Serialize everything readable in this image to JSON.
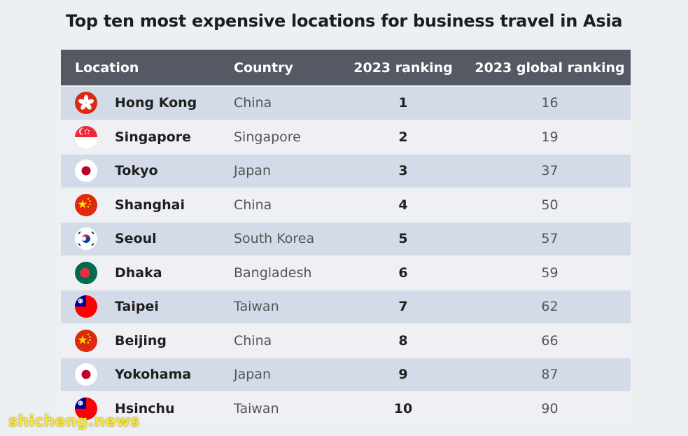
{
  "title": "Top ten most expensive locations for business travel in Asia",
  "headers": {
    "location": "Location",
    "country": "Country",
    "ranking": "2023 ranking",
    "global": "2023 global ranking"
  },
  "rows": [
    {
      "flag": "hong-kong-flag-icon",
      "city": "Hong Kong",
      "country": "China",
      "rank": "1",
      "global": "16"
    },
    {
      "flag": "singapore-flag-icon",
      "city": "Singapore",
      "country": "Singapore",
      "rank": "2",
      "global": "19"
    },
    {
      "flag": "japan-flag-icon",
      "city": "Tokyo",
      "country": "Japan",
      "rank": "3",
      "global": "37"
    },
    {
      "flag": "china-flag-icon",
      "city": "Shanghai",
      "country": "China",
      "rank": "4",
      "global": "50"
    },
    {
      "flag": "south-korea-flag-icon",
      "city": "Seoul",
      "country": "South Korea",
      "rank": "5",
      "global": "57"
    },
    {
      "flag": "bangladesh-flag-icon",
      "city": "Dhaka",
      "country": "Bangladesh",
      "rank": "6",
      "global": "59"
    },
    {
      "flag": "taiwan-flag-icon",
      "city": "Taipei",
      "country": "Taiwan",
      "rank": "7",
      "global": "62"
    },
    {
      "flag": "china-flag-icon",
      "city": "Beijing",
      "country": "China",
      "rank": "8",
      "global": "66"
    },
    {
      "flag": "japan-flag-icon",
      "city": "Yokohama",
      "country": "Japan",
      "rank": "9",
      "global": "87"
    },
    {
      "flag": "taiwan-flag-icon",
      "city": "Hsinchu",
      "country": "Taiwan",
      "rank": "10",
      "global": "90"
    }
  ],
  "watermark": "shicheng.news",
  "colors": {
    "header_bg": "#545963",
    "row_odd": "#d3dbe8",
    "row_even": "#eef0f3",
    "page_bg": "#edf0f3",
    "watermark": "#f5e63c"
  }
}
